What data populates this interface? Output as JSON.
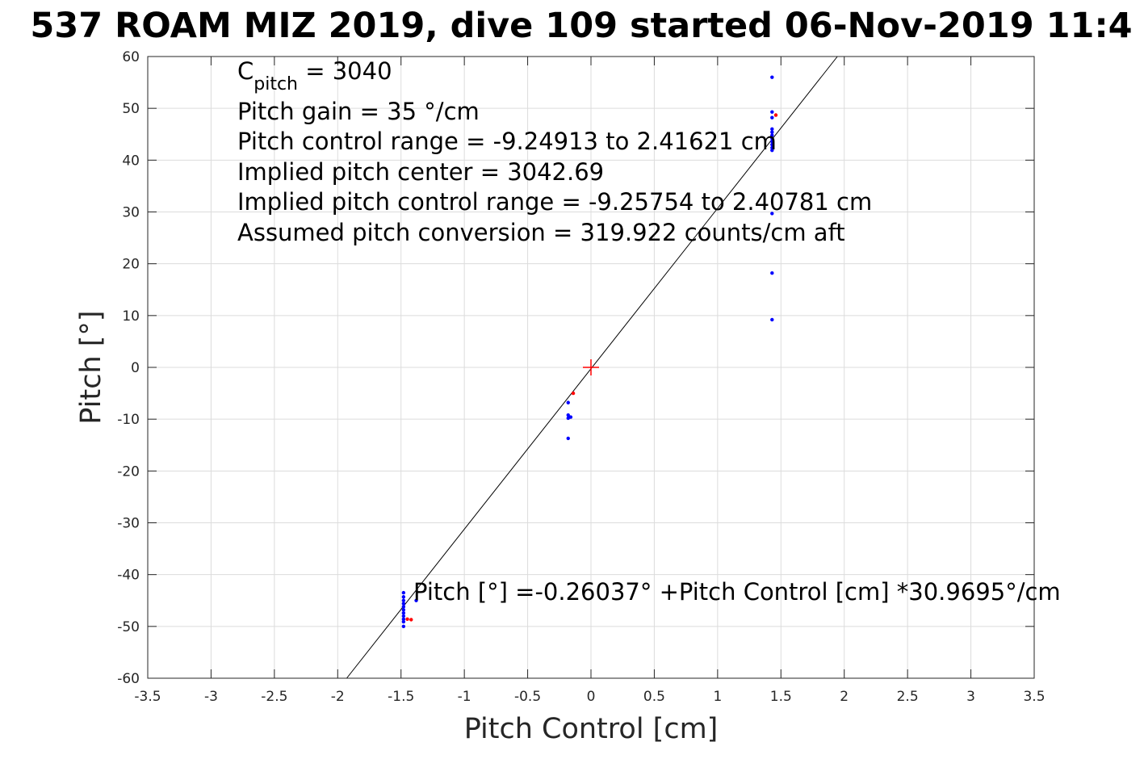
{
  "chart_data": {
    "type": "scatter",
    "title": "537 ROAM MIZ 2019, dive 109 started 06-Nov-2019 11:4",
    "xlabel": "Pitch Control [cm]",
    "ylabel": "Pitch [°]",
    "xlim": [
      -3.5,
      3.5
    ],
    "ylim": [
      -60,
      60
    ],
    "xticks": [
      "-3.5",
      "-3",
      "-2.5",
      "-2",
      "-1.5",
      "-1",
      "-0.5",
      "0",
      "0.5",
      "1",
      "1.5",
      "2",
      "2.5",
      "3",
      "3.5"
    ],
    "yticks": [
      "60",
      "50",
      "40",
      "30",
      "20",
      "10",
      "0",
      "-10",
      "-20",
      "-30",
      "-40",
      "-50",
      "-60"
    ],
    "grid": true,
    "annotations": {
      "c_pitch_main": "C",
      "c_pitch_sub": "pitch",
      "c_pitch_value": " = 3040",
      "lines": [
        "Pitch gain = 35 °/cm",
        "Pitch control range = -9.24913 to 2.41621 cm",
        "Implied pitch center = 3042.69",
        "Implied pitch control range = -9.25754 to 2.40781 cm",
        "Assumed pitch conversion = 319.922 counts/cm aft"
      ],
      "fit_equation": "Pitch [°] =-0.26037° +Pitch Control [cm] *30.9695°/cm"
    },
    "fit_line": {
      "intercept": -0.26037,
      "slope": 30.9695,
      "color": "#000000"
    },
    "center_marker": {
      "x": 0,
      "y": 0,
      "color": "#ff0000"
    },
    "series": [
      {
        "color": "#0000ff",
        "points": [
          [
            1.43,
            56.0
          ],
          [
            1.43,
            49.3
          ],
          [
            1.43,
            48.2
          ],
          [
            1.43,
            46.0
          ],
          [
            1.43,
            45.4
          ],
          [
            1.43,
            44.8
          ],
          [
            1.43,
            44.2
          ],
          [
            1.43,
            43.6
          ],
          [
            1.43,
            43.0
          ],
          [
            1.43,
            42.4
          ],
          [
            1.43,
            41.9
          ],
          [
            1.43,
            29.7
          ],
          [
            1.43,
            18.2
          ],
          [
            1.43,
            9.2
          ],
          [
            -0.18,
            -6.8
          ],
          [
            -0.18,
            -9.2
          ],
          [
            -0.18,
            -9.8
          ],
          [
            -0.16,
            -9.6
          ],
          [
            -0.18,
            -13.7
          ],
          [
            -1.48,
            -43.5
          ],
          [
            -1.48,
            -44.3
          ],
          [
            -1.48,
            -45.0
          ],
          [
            -1.48,
            -45.6
          ],
          [
            -1.48,
            -46.2
          ],
          [
            -1.48,
            -46.8
          ],
          [
            -1.48,
            -47.4
          ],
          [
            -1.48,
            -48.0
          ],
          [
            -1.48,
            -48.6
          ],
          [
            -1.48,
            -49.1
          ],
          [
            -1.48,
            -50.0
          ],
          [
            -1.38,
            -45.0
          ]
        ]
      },
      {
        "color": "#ff0000",
        "points": [
          [
            1.46,
            48.7
          ],
          [
            -0.14,
            -5.0
          ],
          [
            -1.45,
            -48.6
          ],
          [
            -1.42,
            -48.7
          ]
        ]
      }
    ]
  }
}
